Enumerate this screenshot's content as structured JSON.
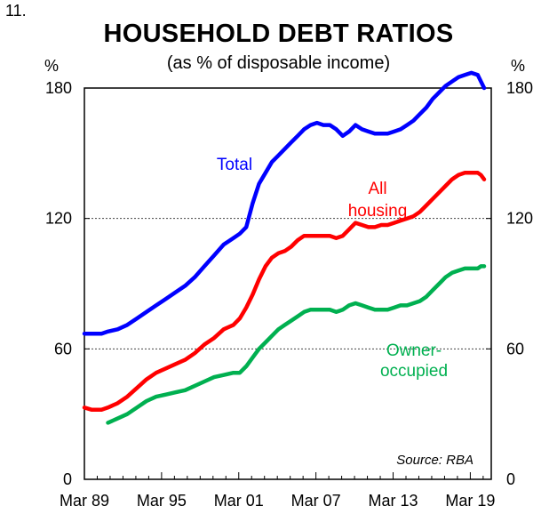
{
  "header": {
    "number": "11.",
    "title": "HOUSEHOLD DEBT RATIOS",
    "subtitle": "(as % of disposable income)",
    "unit_left": "%",
    "unit_right": "%"
  },
  "chart_data": {
    "type": "line",
    "title": "HOUSEHOLD DEBT RATIOS",
    "subtitle": "(as % of disposable income)",
    "xlabel": "",
    "ylabel": "%",
    "ylim": [
      0,
      180
    ],
    "yticks": [
      0,
      60,
      120,
      180
    ],
    "y_tick_labels": [
      "0",
      "60",
      "120",
      "180"
    ],
    "xlim": [
      1989.17,
      2020.8
    ],
    "xticks": [
      1989.17,
      1995.17,
      2001.17,
      2007.17,
      2013.17,
      2019.17
    ],
    "x_tick_labels": [
      "Mar 89",
      "Mar 95",
      "Mar 01",
      "Mar 07",
      "Mar 13",
      "Mar 19"
    ],
    "grid": "horizontal dotted",
    "legend": "inline labels",
    "source": "Source: RBA",
    "series": [
      {
        "name": "Total",
        "color": "#0000ff",
        "label_lines": [
          "Total"
        ],
        "x": [
          1989.17,
          1989.75,
          1990.5,
          1991.0,
          1991.75,
          1992.5,
          1993.25,
          1994.0,
          1994.75,
          1995.5,
          1996.25,
          1997.0,
          1997.75,
          1998.5,
          1999.25,
          2000.0,
          2000.75,
          2001.25,
          2001.75,
          2002.25,
          2002.75,
          2003.25,
          2003.75,
          2004.25,
          2004.75,
          2005.25,
          2005.75,
          2006.25,
          2006.75,
          2007.25,
          2007.75,
          2008.25,
          2008.75,
          2009.25,
          2009.75,
          2010.25,
          2010.75,
          2011.25,
          2011.75,
          2012.25,
          2012.75,
          2013.25,
          2013.75,
          2014.25,
          2014.75,
          2015.25,
          2015.75,
          2016.25,
          2016.75,
          2017.25,
          2017.75,
          2018.25,
          2018.75,
          2019.25,
          2019.75,
          2020.0,
          2020.25
        ],
        "values": [
          67,
          67,
          67,
          68,
          69,
          71,
          74,
          77,
          80,
          83,
          86,
          89,
          93,
          98,
          103,
          108,
          111,
          113,
          116,
          127,
          136,
          141,
          146,
          149,
          152,
          155,
          158,
          161,
          163,
          164,
          163,
          163,
          161,
          158,
          160,
          163,
          161,
          160,
          159,
          159,
          159,
          160,
          161,
          163,
          165,
          168,
          171,
          175,
          178,
          181,
          183,
          185,
          186,
          187,
          186,
          183,
          180
        ]
      },
      {
        "name": "All housing",
        "color": "#ff0000",
        "label_lines": [
          "All",
          "housing"
        ],
        "x": [
          1989.17,
          1989.75,
          1990.5,
          1991.0,
          1991.75,
          1992.5,
          1993.25,
          1994.0,
          1994.75,
          1995.5,
          1996.25,
          1997.0,
          1997.75,
          1998.5,
          1999.25,
          2000.0,
          2000.75,
          2001.25,
          2001.75,
          2002.25,
          2002.75,
          2003.25,
          2003.75,
          2004.25,
          2004.75,
          2005.25,
          2005.75,
          2006.25,
          2006.75,
          2007.25,
          2007.75,
          2008.25,
          2008.75,
          2009.25,
          2009.75,
          2010.25,
          2010.75,
          2011.25,
          2011.75,
          2012.25,
          2012.75,
          2013.25,
          2013.75,
          2014.25,
          2014.75,
          2015.25,
          2015.75,
          2016.25,
          2016.75,
          2017.25,
          2017.75,
          2018.25,
          2018.75,
          2019.25,
          2019.75,
          2020.0,
          2020.25
        ],
        "values": [
          33,
          32,
          32,
          33,
          35,
          38,
          42,
          46,
          49,
          51,
          53,
          55,
          58,
          62,
          65,
          69,
          71,
          74,
          79,
          85,
          92,
          98,
          102,
          104,
          105,
          107,
          110,
          112,
          112,
          112,
          112,
          112,
          111,
          112,
          115,
          118,
          117,
          116,
          116,
          117,
          117,
          118,
          119,
          120,
          121,
          123,
          126,
          129,
          132,
          135,
          138,
          140,
          141,
          141,
          141,
          140,
          138
        ]
      },
      {
        "name": "Owner-occupied",
        "color": "#00b050",
        "label_lines": [
          "Owner-",
          "occupied"
        ],
        "x": [
          1991.0,
          1991.75,
          1992.5,
          1993.25,
          1994.0,
          1994.75,
          1995.5,
          1996.25,
          1997.0,
          1997.75,
          1998.5,
          1999.25,
          2000.0,
          2000.75,
          2001.25,
          2001.75,
          2002.25,
          2002.75,
          2003.25,
          2003.75,
          2004.25,
          2004.75,
          2005.25,
          2005.75,
          2006.25,
          2006.75,
          2007.25,
          2007.75,
          2008.25,
          2008.75,
          2009.25,
          2009.75,
          2010.25,
          2010.75,
          2011.25,
          2011.75,
          2012.25,
          2012.75,
          2013.25,
          2013.75,
          2014.25,
          2014.75,
          2015.25,
          2015.75,
          2016.25,
          2016.75,
          2017.25,
          2017.75,
          2018.25,
          2018.75,
          2019.25,
          2019.75,
          2020.0,
          2020.25
        ],
        "values": [
          26,
          28,
          30,
          33,
          36,
          38,
          39,
          40,
          41,
          43,
          45,
          47,
          48,
          49,
          49,
          52,
          56,
          60,
          63,
          66,
          69,
          71,
          73,
          75,
          77,
          78,
          78,
          78,
          78,
          77,
          78,
          80,
          81,
          80,
          79,
          78,
          78,
          78,
          79,
          80,
          80,
          81,
          82,
          84,
          87,
          90,
          93,
          95,
          96,
          97,
          97,
          97,
          98,
          98
        ]
      }
    ]
  }
}
